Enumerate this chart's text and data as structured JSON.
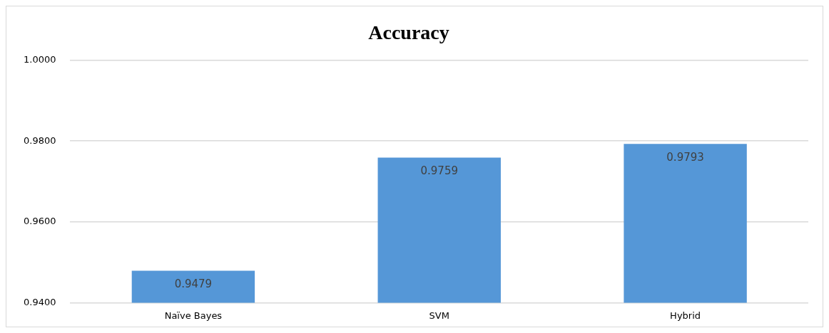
{
  "chart_data": {
    "type": "bar",
    "title": "Accuracy",
    "categories": [
      "Naïve Bayes",
      "SVM",
      "Hybrid"
    ],
    "values": [
      0.9479,
      0.9759,
      0.9793
    ],
    "color": "#5597d7",
    "ylim": [
      0.94,
      1.0
    ],
    "yticks": [
      {
        "value": 0.94,
        "label": "0.9400"
      },
      {
        "value": 0.96,
        "label": "0.9600"
      },
      {
        "value": 0.98,
        "label": "0.9800"
      },
      {
        "value": 1.0,
        "label": "1.0000"
      }
    ],
    "grid": "y",
    "legend": false,
    "data_labels": true
  }
}
